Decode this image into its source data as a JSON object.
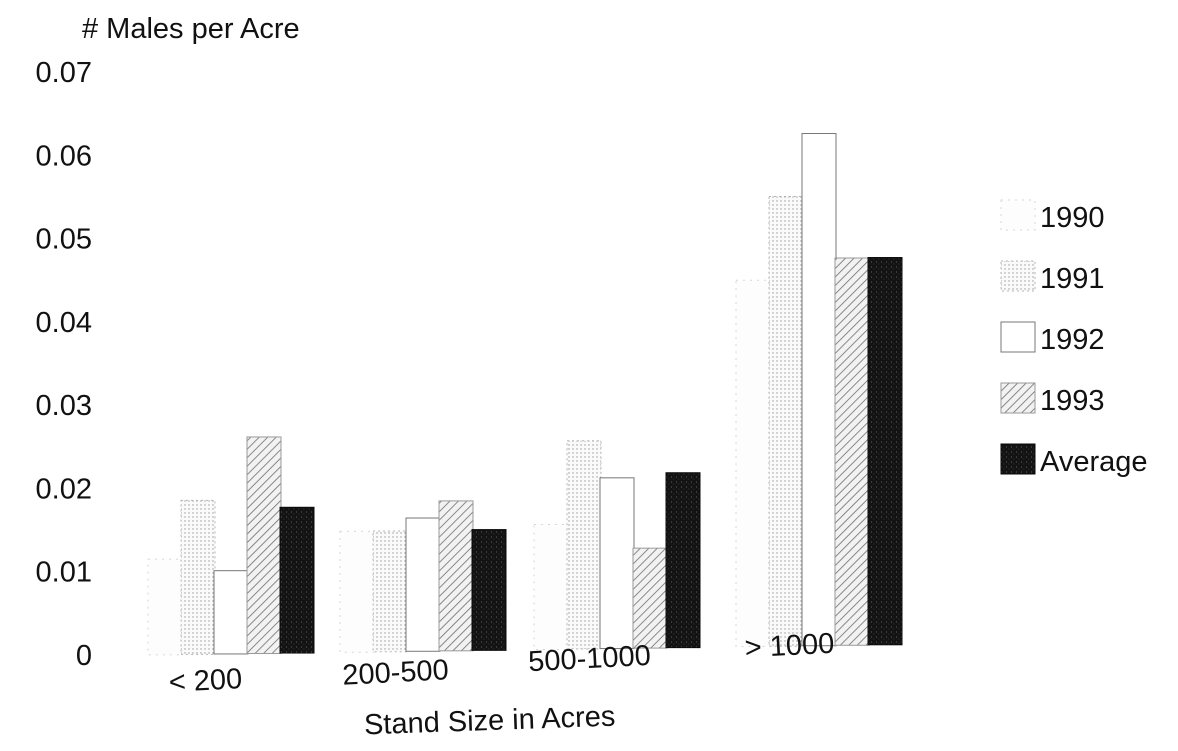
{
  "chart_data": {
    "type": "bar",
    "ylabel": "# Males per Acre",
    "xlabel": "Stand Size in Acres",
    "ylim": [
      0,
      0.07
    ],
    "yticks": [
      "0",
      "0.01",
      "0.02",
      "0.03",
      "0.04",
      "0.05",
      "0.06",
      "0.07"
    ],
    "categories": [
      "< 200",
      "200-500",
      "500-1000",
      "> 1000"
    ],
    "series": [
      {
        "name": "1990",
        "values": [
          0.0115,
          0.0145,
          0.015,
          0.044
        ],
        "color": "#fdfdfd",
        "pattern": "faint"
      },
      {
        "name": "1991",
        "values": [
          0.0185,
          0.0145,
          0.025,
          0.054
        ],
        "color": "#f4f4f4",
        "pattern": "dots"
      },
      {
        "name": "1992",
        "values": [
          0.01,
          0.016,
          0.0205,
          0.0615
        ],
        "color": "#ffffff",
        "pattern": "edge"
      },
      {
        "name": "1993",
        "values": [
          0.026,
          0.018,
          0.012,
          0.0465
        ],
        "color": "#e6e6e6",
        "pattern": "hatch"
      },
      {
        "name": "Average",
        "values": [
          0.0175,
          0.0145,
          0.021,
          0.0465
        ],
        "color": "#141414",
        "pattern": "solid"
      }
    ],
    "grid": false,
    "legend": "right"
  }
}
